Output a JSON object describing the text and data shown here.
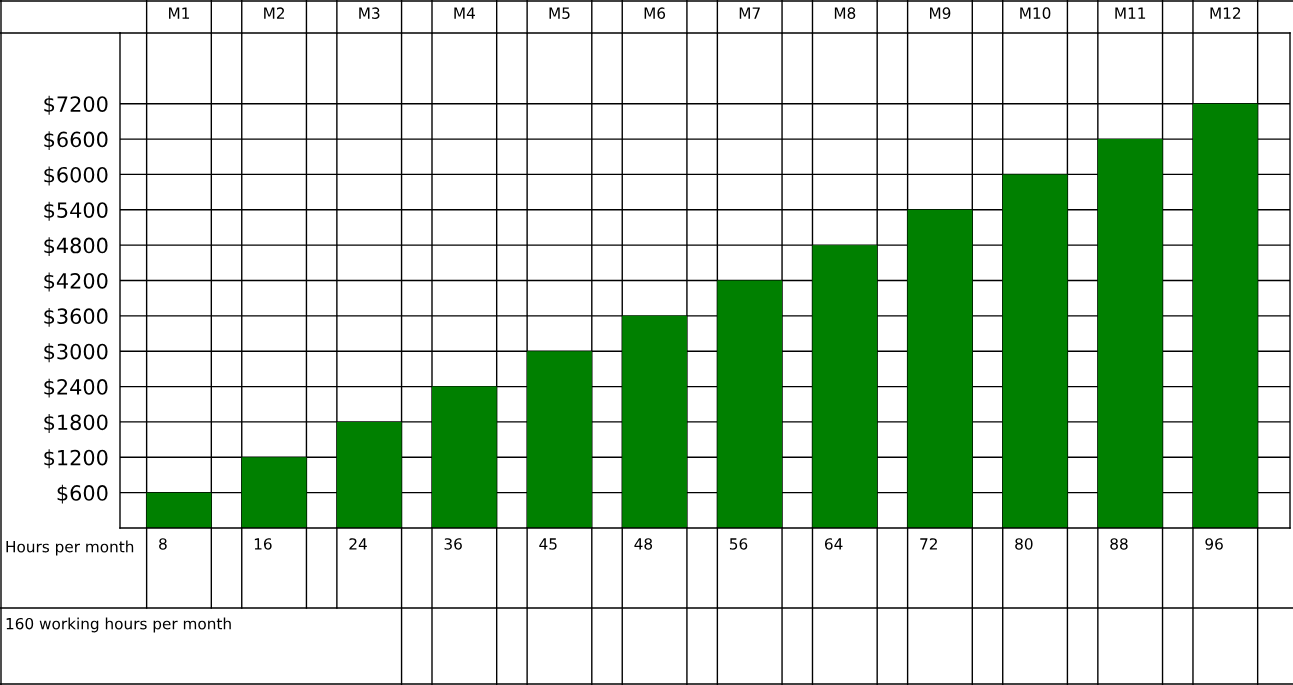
{
  "chart_data": {
    "type": "bar",
    "categories": [
      "M1",
      "M2",
      "M3",
      "M4",
      "M5",
      "M6",
      "M7",
      "M8",
      "M9",
      "M10",
      "M11",
      "M12"
    ],
    "values": [
      600,
      1200,
      1800,
      2400,
      3000,
      3600,
      4200,
      4800,
      5400,
      6000,
      6600,
      7200
    ],
    "color": "#008000",
    "ylim": [
      0,
      8400
    ],
    "yticks": [
      {
        "value": 600,
        "label": "$600"
      },
      {
        "value": 1200,
        "label": "$1200"
      },
      {
        "value": 1800,
        "label": "$1800"
      },
      {
        "value": 2400,
        "label": "$2400"
      },
      {
        "value": 3000,
        "label": "$3000"
      },
      {
        "value": 3600,
        "label": "$3600"
      },
      {
        "value": 4200,
        "label": "$4200"
      },
      {
        "value": 4800,
        "label": "$4800"
      },
      {
        "value": 5400,
        "label": "$5400"
      },
      {
        "value": 6000,
        "label": "$6000"
      },
      {
        "value": 6600,
        "label": "$6600"
      },
      {
        "value": 7200,
        "label": "$7200"
      }
    ],
    "grid": true,
    "annotations": [
      "Hours per month",
      "8",
      "16",
      "24",
      "36",
      "45",
      "48",
      "56",
      "64",
      "72",
      "80",
      "88",
      "96",
      "160 working hours per month"
    ]
  }
}
